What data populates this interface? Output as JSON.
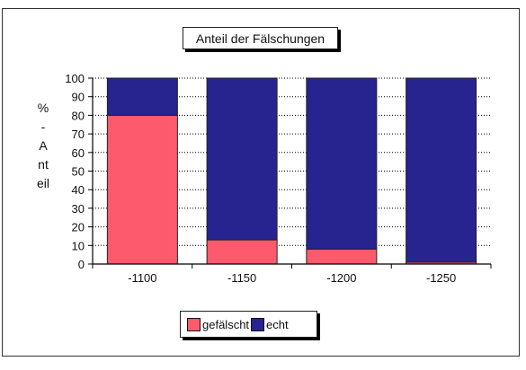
{
  "chart_data": {
    "type": "bar",
    "stacked": true,
    "title": "Anteil der Fälschungen",
    "ylabel": "% - Anteil",
    "xlabel": "",
    "categories": [
      "-1100",
      "-1150",
      "-1200",
      "-1250"
    ],
    "series": [
      {
        "name": "gefälscht",
        "values": [
          80,
          13,
          8,
          1
        ],
        "color": "#fe5a6e"
      },
      {
        "name": "echt",
        "values": [
          20,
          87,
          92,
          99
        ],
        "color": "#27238f"
      }
    ],
    "ylim": [
      0,
      100
    ],
    "yticks": [
      0,
      10,
      20,
      30,
      40,
      50,
      60,
      70,
      80,
      90,
      100
    ],
    "grid": true,
    "legend_position": "bottom-center"
  }
}
